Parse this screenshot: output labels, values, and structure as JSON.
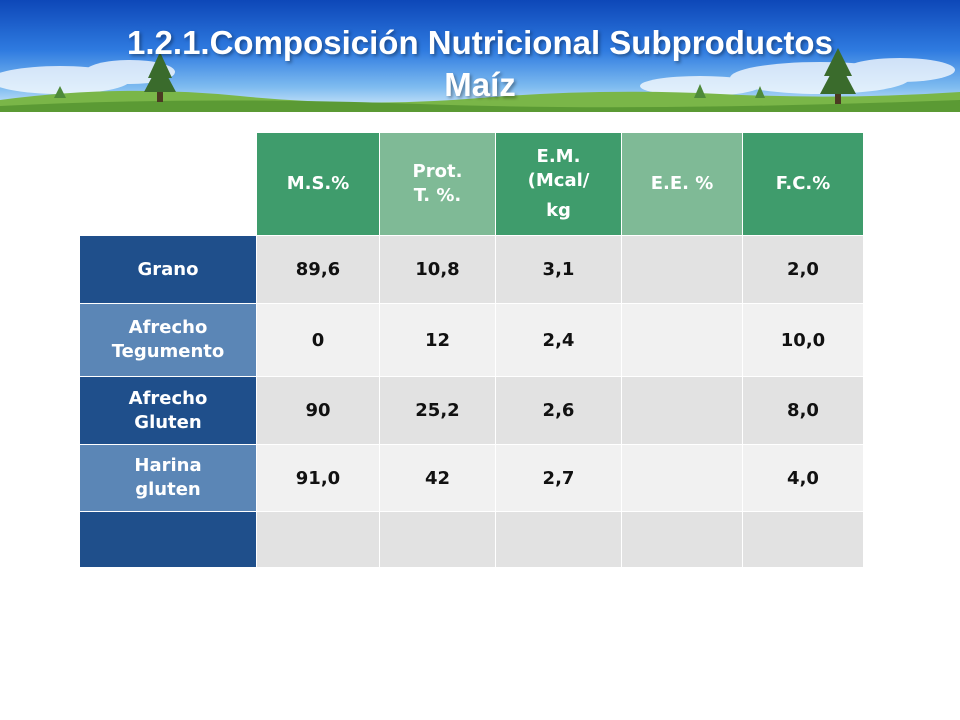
{
  "header": {
    "title_line1": "1.2.1.Composición Nutricional Subproductos",
    "title_line2": "Maíz"
  },
  "table": {
    "columns": [
      "M.S.%",
      "Prot. T. %.",
      "E.M. (Mcal/ kg",
      "E.E. %",
      "F.C.%"
    ],
    "column_lines": {
      "ms": [
        "M.S.%"
      ],
      "prot": [
        "Prot.",
        "T. %."
      ],
      "em": [
        "E.M.",
        "(Mcal/",
        "kg"
      ],
      "ee": [
        "E.E. %"
      ],
      "fc": [
        "F.C.%"
      ]
    },
    "rows": [
      {
        "label_lines": [
          "Grano"
        ],
        "ms": "89,6",
        "prot": "10,8",
        "em": "3,1",
        "ee": "",
        "fc": "2,0"
      },
      {
        "label_lines": [
          "Afrecho",
          "Tegumento"
        ],
        "ms": "0",
        "prot": "12",
        "em": "2,4",
        "ee": "",
        "fc": "10,0"
      },
      {
        "label_lines": [
          "Afrecho",
          "Gluten"
        ],
        "ms": "90",
        "prot": "25,2",
        "em": "2,6",
        "ee": "",
        "fc": "8,0"
      },
      {
        "label_lines": [
          "Harina",
          "gluten"
        ],
        "ms": "91,0",
        "prot": "42",
        "em": "2,7",
        "ee": "",
        "fc": "4,0"
      },
      {
        "label_lines": [],
        "ms": "",
        "prot": "",
        "em": "",
        "ee": "",
        "fc": ""
      }
    ]
  },
  "colors": {
    "header_dark_green": "#3f9c6c",
    "header_light_green": "#7fba96",
    "row_label_dark_blue": "#1f4f8b",
    "row_label_light_blue": "#5b86b6",
    "cell_gray": "#e2e2e2",
    "cell_light": "#f1f1f1"
  }
}
